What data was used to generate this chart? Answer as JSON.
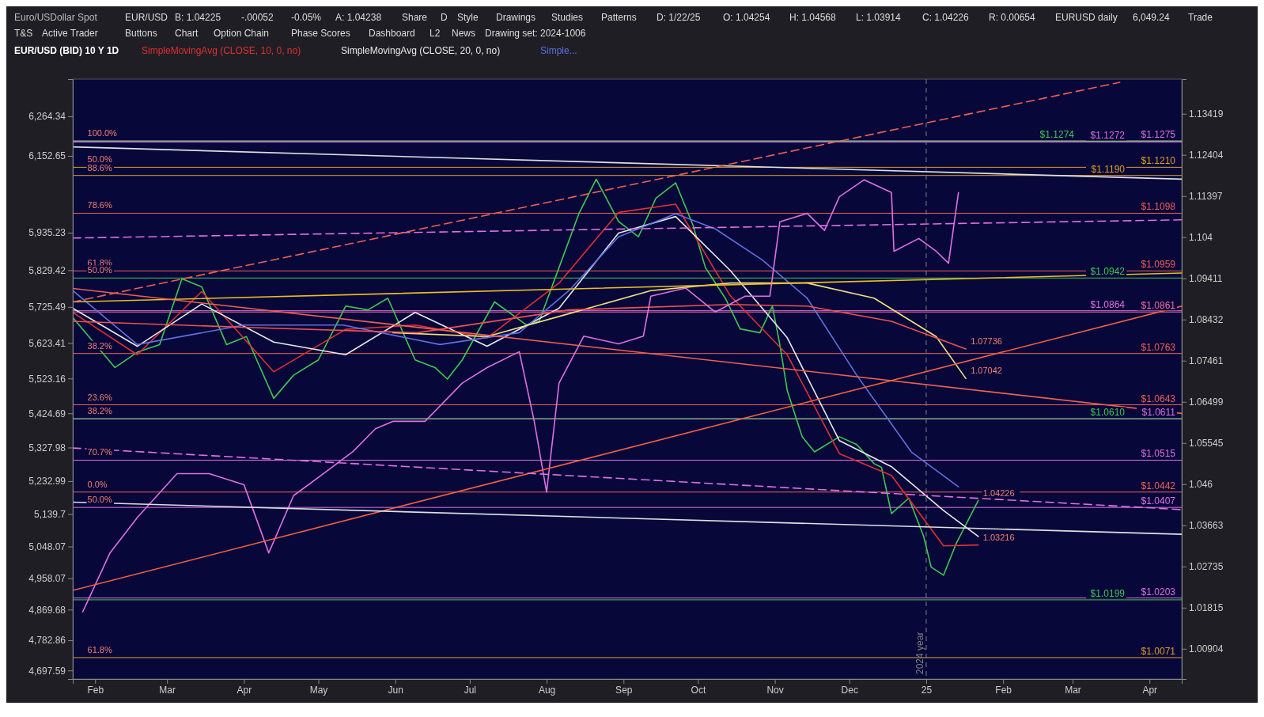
{
  "chart_data": {
    "type": "line",
    "title": "EUR/USD (BID) 10 Y 1D",
    "subtitle": "Euro/USDollar Spot",
    "log": "y",
    "legend": "top left",
    "xlim": [
      "2024-01-23",
      "2025-04-14"
    ],
    "xticks": [
      {
        "value": "2024-02-01",
        "label": "Feb"
      },
      {
        "value": "2024-03-01",
        "label": "Mar"
      },
      {
        "value": "2024-04-01",
        "label": "Apr"
      },
      {
        "value": "2024-05-01",
        "label": "May"
      },
      {
        "value": "2024-06-01",
        "label": "Jun"
      },
      {
        "value": "2024-07-01",
        "label": "Jul"
      },
      {
        "value": "2024-08-01",
        "label": "Aug"
      },
      {
        "value": "2024-09-01",
        "label": "Sep"
      },
      {
        "value": "2024-10-01",
        "label": "Oct"
      },
      {
        "value": "2024-11-01",
        "label": "Nov"
      },
      {
        "value": "2024-12-01",
        "label": "Dec"
      },
      {
        "value": "2025-01-01",
        "label": "25"
      },
      {
        "value": "2025-02-01",
        "label": "Feb"
      },
      {
        "value": "2025-03-01",
        "label": "Mar"
      },
      {
        "value": "2025-04-01",
        "label": "Apr"
      }
    ],
    "ylim": [
      1.0024,
      1.1428
    ],
    "yticks": [
      1.00904,
      1.01815,
      1.02735,
      1.03663,
      1.046,
      1.05545,
      1.06499,
      1.07461,
      1.08432,
      1.09411,
      1.104,
      1.11397,
      1.12404,
      1.13419
    ],
    "y2lim": [
      4673.4,
      6369.6
    ],
    "y2ticks": [
      {
        "value": 4697.59,
        "label": "4,697.59"
      },
      {
        "value": 4782.86,
        "label": "4,782.86"
      },
      {
        "value": 4869.68,
        "label": "4,869.68"
      },
      {
        "value": 4958.07,
        "label": "4,958.07"
      },
      {
        "value": 5048.07,
        "label": "5,048.07"
      },
      {
        "value": 5139.7,
        "label": "5,139.7"
      },
      {
        "value": 5232.99,
        "label": "5,232.99"
      },
      {
        "value": 5327.98,
        "label": "5,327.98"
      },
      {
        "value": 5424.69,
        "label": "5,424.69"
      },
      {
        "value": 5523.16,
        "label": "5,523.16"
      },
      {
        "value": 5623.41,
        "label": "5,623.41"
      },
      {
        "value": 5725.49,
        "label": "5,725.49"
      },
      {
        "value": 5829.42,
        "label": "5,829.42"
      },
      {
        "value": 5935.23,
        "label": "5,935.23"
      },
      {
        "value": 6152.65,
        "label": "6,152.65"
      },
      {
        "value": 6264.34,
        "label": "6,264.34"
      }
    ],
    "series": [
      {
        "color": "#40c850",
        "x": [
          "2024-01-23",
          "2024-02-09",
          "2024-02-18",
          "2024-02-27",
          "2024-03-07",
          "2024-03-15",
          "2024-03-25",
          "2024-04-02",
          "2024-04-13",
          "2024-04-21",
          "2024-05-01",
          "2024-05-12",
          "2024-05-21",
          "2024-05-29",
          "2024-06-09",
          "2024-06-17",
          "2024-06-22",
          "2024-06-28",
          "2024-07-11",
          "2024-07-24",
          "2024-07-29",
          "2024-08-06",
          "2024-08-14",
          "2024-08-21",
          "2024-08-30",
          "2024-09-07",
          "2024-09-14",
          "2024-09-22",
          "2024-09-29",
          "2024-10-04",
          "2024-10-12",
          "2024-10-18",
          "2024-10-26",
          "2024-10-31",
          "2024-11-03",
          "2024-11-06",
          "2024-11-12",
          "2024-11-17",
          "2024-11-27",
          "2024-12-04",
          "2024-12-11",
          "2024-12-14",
          "2024-12-18",
          "2024-12-25",
          "2024-12-31",
          "2025-01-03",
          "2025-01-08",
          "2025-01-13",
          "2025-01-22"
        ],
        "values": [
          1.0848,
          1.073,
          1.0766,
          1.0784,
          1.094,
          1.0921,
          1.0784,
          1.0803,
          1.0658,
          1.0712,
          1.0748,
          1.0875,
          1.0866,
          1.0894,
          1.0748,
          1.073,
          1.0703,
          1.0748,
          1.0885,
          1.083,
          1.0839,
          1.0967,
          1.1097,
          1.1181,
          1.1078,
          1.1041,
          1.1134,
          1.1172,
          1.1069,
          1.0967,
          1.0894,
          1.0821,
          1.0812,
          1.0875,
          1.0784,
          1.0676,
          1.0569,
          1.0534,
          1.0569,
          1.0551,
          1.0507,
          1.0498,
          1.0393,
          1.0428,
          1.0341,
          1.0272,
          1.0254,
          1.0324,
          1.0423
        ]
      },
      {
        "name": "SimpleMovingAvg (CLOSE, 10, 0, no)",
        "color": "#e03030",
        "x": [
          "2024-01-23",
          "2024-02-18",
          "2024-03-15",
          "2024-04-13",
          "2024-05-12",
          "2024-06-09",
          "2024-07-08",
          "2024-08-06",
          "2024-08-30",
          "2024-09-22",
          "2024-10-14",
          "2024-11-06",
          "2024-11-27",
          "2024-12-18",
          "2025-01-08",
          "2025-01-22"
        ],
        "values": [
          1.086,
          1.076,
          1.091,
          1.072,
          1.082,
          1.083,
          1.08,
          1.093,
          1.11,
          1.112,
          1.09,
          1.076,
          1.053,
          1.048,
          1.032,
          1.0322
        ]
      },
      {
        "name": "SimpleMovingAvg (CLOSE, 20, 0, no)",
        "color": "#e8e8e8",
        "x": [
          "2024-01-23",
          "2024-02-18",
          "2024-03-15",
          "2024-04-13",
          "2024-05-12",
          "2024-06-09",
          "2024-07-08",
          "2024-08-06",
          "2024-08-30",
          "2024-09-22",
          "2024-10-14",
          "2024-11-06",
          "2024-11-27",
          "2024-12-18",
          "2025-01-08",
          "2025-01-22"
        ],
        "values": [
          1.087,
          1.078,
          1.088,
          1.079,
          1.076,
          1.086,
          1.078,
          1.087,
          1.105,
          1.109,
          1.096,
          1.08,
          1.056,
          1.05,
          1.04,
          1.0341
        ]
      },
      {
        "name": "Simple...",
        "color": "#6070e0",
        "x": [
          "2024-01-23",
          "2024-02-18",
          "2024-04-01",
          "2024-05-11",
          "2024-06-19",
          "2024-07-21",
          "2024-08-10",
          "2024-08-30",
          "2024-09-22",
          "2024-10-08",
          "2024-10-27",
          "2024-11-14",
          "2024-12-04",
          "2024-12-26",
          "2025-01-14"
        ],
        "values": [
          1.0912,
          1.0784,
          1.083,
          1.083,
          1.0784,
          1.0812,
          1.0912,
          1.1041,
          1.1097,
          1.106,
          1.0985,
          1.0894,
          1.0712,
          1.0534,
          1.0454
        ]
      },
      {
        "color": "#f0e080",
        "x": [
          "2024-05-31",
          "2024-07-08",
          "2024-08-10",
          "2024-09-12",
          "2024-10-14",
          "2024-11-14",
          "2024-12-11",
          "2025-01-05",
          "2025-01-17"
        ],
        "values": [
          1.0812,
          1.0803,
          1.0857,
          1.0912,
          1.093,
          1.093,
          1.0894,
          1.0803,
          1.07042
        ]
      },
      {
        "color": "#f05050",
        "x": [
          "2024-01-23",
          "2024-04-05",
          "2024-06-10",
          "2024-08-10",
          "2024-10-14",
          "2024-11-14",
          "2024-12-18",
          "2025-01-17"
        ],
        "values": [
          1.0839,
          1.0824,
          1.0812,
          1.0866,
          1.0879,
          1.0875,
          1.0839,
          1.07736
        ]
      },
      {
        "color": "#e070e0",
        "axis": "y2",
        "x": [
          "2024-01-27",
          "2024-02-07",
          "2024-02-18",
          "2024-03-05",
          "2024-03-18",
          "2024-04-01",
          "2024-04-11",
          "2024-04-21",
          "2024-05-03",
          "2024-05-15",
          "2024-05-24",
          "2024-05-31",
          "2024-06-13",
          "2024-06-28",
          "2024-07-08",
          "2024-07-21",
          "2024-07-27",
          "2024-08-01",
          "2024-08-06",
          "2024-08-16",
          "2024-08-30",
          "2024-09-09",
          "2024-09-12",
          "2024-09-26",
          "2024-10-08",
          "2024-10-20",
          "2024-10-30",
          "2024-11-03",
          "2024-11-14",
          "2024-11-21",
          "2024-11-27",
          "2024-12-07",
          "2024-12-18",
          "2024-12-19",
          "2024-12-29",
          "2025-01-05",
          "2025-01-10",
          "2025-01-14"
        ],
        "values": [
          4863,
          5030,
          5130,
          5254,
          5254,
          5223,
          5030,
          5192,
          5254,
          5317,
          5381,
          5402,
          5402,
          5510,
          5554,
          5599,
          5402,
          5202,
          5510,
          5643,
          5621,
          5643,
          5756,
          5779,
          5711,
          5756,
          5756,
          5966,
          5990,
          5942,
          6037,
          6085,
          6049,
          5883,
          5919,
          5883,
          5849,
          6049
        ]
      },
      {
        "color": "#f06040",
        "x": [
          "2024-01-23",
          "2025-04-14"
        ],
        "values": [
          1.022,
          1.0875
        ]
      },
      {
        "color": "#e0e0e0",
        "x": [
          "2024-01-23",
          "2025-04-14"
        ],
        "values": [
          1.126,
          1.1181
        ]
      },
      {
        "color": "#e8c020",
        "x": [
          "2024-01-23",
          "2025-04-14"
        ],
        "values": [
          1.0885,
          1.0954
        ]
      },
      {
        "color": "#e070e0",
        "line_style": "dashed",
        "x": [
          "2024-01-23",
          "2025-04-14"
        ],
        "values": [
          1.0543,
          1.0402
        ]
      },
      {
        "color": "#e070e0",
        "line_style": "dashed",
        "x": [
          "2024-01-23",
          "2025-04-14"
        ],
        "values": [
          1.1038,
          1.1082
        ]
      },
      {
        "color": "#e0e0e0",
        "x": [
          "2024-01-23",
          "2025-04-14"
        ],
        "values": [
          1.0419,
          1.0346
        ]
      },
      {
        "color": "#f06050",
        "line_style": "dashed",
        "x": [
          "2024-01-23",
          "2025-03-20"
        ],
        "values": [
          1.0885,
          1.142
        ]
      },
      {
        "color": "#f06050",
        "x": [
          "2024-01-23",
          "2025-04-14"
        ],
        "values": [
          1.0917,
          1.0623
        ]
      }
    ],
    "ref_lines": [
      {
        "axis": "y",
        "value": 1.1275,
        "label": "$1.1275",
        "color": "#e070e0"
      },
      {
        "axis": "y",
        "value": 1.1272,
        "label": "$1.1272",
        "color": "#e070e0"
      },
      {
        "axis": "y",
        "value": 1.1274,
        "label": "$1.1274",
        "color": "#40c850"
      },
      {
        "axis": "y",
        "value": 1.121,
        "label": "$1.1210",
        "color": "#e0a020"
      },
      {
        "axis": "y",
        "value": 1.119,
        "label": "$1.1190",
        "color": "#e0a020"
      },
      {
        "axis": "y",
        "value": 1.1098,
        "label": "$1.1098",
        "color": "#f06050"
      },
      {
        "axis": "y",
        "value": 1.0959,
        "label": "$1.0959",
        "color": "#f06050"
      },
      {
        "axis": "y",
        "value": 1.0942,
        "label": "$1.0942",
        "color": "#40c850"
      },
      {
        "axis": "y",
        "value": 1.0861,
        "label": "$1.0861",
        "color": "#f070a0"
      },
      {
        "axis": "y",
        "value": 1.0864,
        "label": "$1.0864",
        "color": "#e070e0"
      },
      {
        "axis": "y",
        "value": 1.0763,
        "label": "$1.0763",
        "color": "#f06050"
      },
      {
        "axis": "y",
        "value": 1.0643,
        "label": "$1.0643",
        "color": "#f06050"
      },
      {
        "axis": "y",
        "value": 1.0611,
        "label": "$1.0611",
        "color": "#e070e0"
      },
      {
        "axis": "y",
        "value": 1.061,
        "label": "$1.0610",
        "color": "#40c850"
      },
      {
        "axis": "y",
        "value": 1.0515,
        "label": "$1.0515",
        "color": "#e070e0"
      },
      {
        "axis": "y",
        "value": 1.0442,
        "label": "$1.0442",
        "color": "#f06050"
      },
      {
        "axis": "y",
        "value": 1.0407,
        "label": "$1.0407",
        "color": "#e070e0"
      },
      {
        "axis": "y",
        "value": 1.0203,
        "label": "$1.0203",
        "color": "#e070e0"
      },
      {
        "axis": "y",
        "value": 1.0199,
        "label": "$1.0199",
        "color": "#40c850"
      },
      {
        "axis": "y",
        "value": 1.0071,
        "label": "$1.0071",
        "color": "#e0a020"
      },
      {
        "axis": "x",
        "value": "2025-01-01",
        "label": "2024 year",
        "color": "#808080",
        "line_style": "dashed"
      }
    ],
    "annotations": [
      "EUR/USD",
      "B: 1.04225",
      "-.00052",
      "-0.05%",
      "A: 1.04238",
      "Share",
      "D",
      "Style",
      "Drawings",
      "Studies",
      "Patterns",
      "D: 1/22/25",
      "O: 1.04254",
      "H: 1.04568",
      "L: 1.03914",
      "C: 1.04226",
      "R: 0.00654",
      "EURUSD daily",
      "6,049.24",
      "Trade",
      "T&S",
      "Active Trader",
      "Buttons",
      "Chart",
      "Option Chain",
      "Phase Scores",
      "Dashboard",
      "L2",
      "News",
      "Drawing set: 2024-1006",
      {
        "text": "100.0%",
        "x": "2024-01-27",
        "y": 1.1275
      },
      {
        "text": "50.0%",
        "x": "2024-01-27",
        "y": 1.121
      },
      {
        "text": "88.6%",
        "x": "2024-01-27",
        "y": 1.119
      },
      {
        "text": "78.6%",
        "x": "2024-01-27",
        "y": 1.1098
      },
      {
        "text": "61.8%",
        "x": "2024-01-27",
        "y": 1.0959
      },
      {
        "text": "50.0%",
        "x": "2024-01-27",
        "y": 1.0942
      },
      {
        "text": "38.2%",
        "x": "2024-01-27",
        "y": 1.0763
      },
      {
        "text": "23.6%",
        "x": "2024-01-27",
        "y": 1.0643
      },
      {
        "text": "38.2%",
        "x": "2024-01-27",
        "y": 1.0611
      },
      {
        "text": "70.7%",
        "x": "2024-01-27",
        "y": 1.0515
      },
      {
        "text": "0.0%",
        "x": "2024-01-27",
        "y": 1.0442
      },
      {
        "text": "50.0%",
        "x": "2024-01-27",
        "y": 1.0407
      },
      {
        "text": "61.8%",
        "x": "2024-01-27",
        "y": 1.0071
      },
      {
        "text": "1.07736",
        "x": "2025-01-17",
        "y": 1.07736
      },
      {
        "text": "1.07042",
        "x": "2025-01-17",
        "y": 1.07042
      },
      {
        "text": "1.04226",
        "x": "2025-01-22",
        "y": 1.04226
      },
      {
        "text": "1.03216",
        "x": "2025-01-22",
        "y": 1.03216
      }
    ]
  }
}
